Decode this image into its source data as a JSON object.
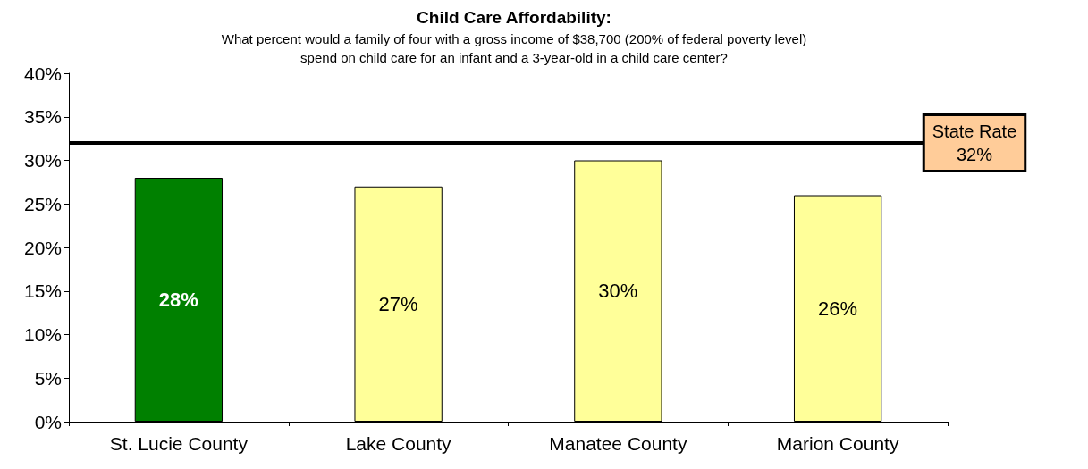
{
  "chart_data": {
    "type": "bar",
    "title": "Child Care Affordability:",
    "subtitle": "What percent would a family of four with a gross income of $38,700 (200% of federal poverty level)\nspend on child care for an infant and a 3-year-old in a child care center?",
    "categories": [
      "St. Lucie County",
      "Lake County",
      "Manatee County",
      "Marion County"
    ],
    "values": [
      28,
      27,
      30,
      26
    ],
    "colors": [
      "#008000",
      "#ffff99",
      "#ffff99",
      "#ffff99"
    ],
    "value_labels": [
      "28%",
      "27%",
      "30%",
      "26%"
    ],
    "ylim": [
      0,
      40
    ],
    "yticks": [
      {
        "value": 0,
        "label": "0%"
      },
      {
        "value": 5,
        "label": "5%"
      },
      {
        "value": 10,
        "label": "10%"
      },
      {
        "value": 15,
        "label": "15%"
      },
      {
        "value": 20,
        "label": "20%"
      },
      {
        "value": 25,
        "label": "25%"
      },
      {
        "value": 30,
        "label": "30%"
      },
      {
        "value": 35,
        "label": "35%"
      },
      {
        "value": 40,
        "label": "40%"
      }
    ],
    "ref_lines": [
      {
        "axis": "y",
        "value": 32,
        "label": "State Rate\n32%",
        "color": "#000000"
      }
    ],
    "grid": false
  }
}
